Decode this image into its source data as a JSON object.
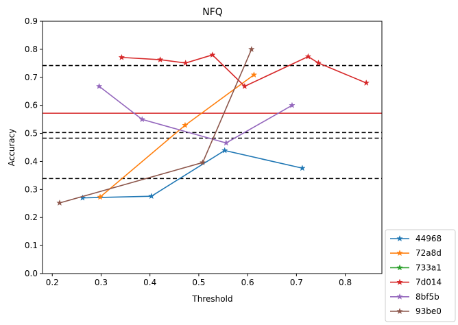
{
  "chart_data": {
    "type": "line",
    "title": "NFQ",
    "xlabel": "Threshold",
    "ylabel": "Accuracy",
    "xlim": [
      0.18,
      0.875
    ],
    "ylim": [
      0.0,
      0.9
    ],
    "xticks": [
      0.2,
      0.3,
      0.4,
      0.5,
      0.6,
      0.7,
      0.8
    ],
    "xtick_labels": [
      "0.2",
      "0.3",
      "0.4",
      "0.5",
      "0.6",
      "0.7",
      "0.8"
    ],
    "yticks": [
      0.0,
      0.1,
      0.2,
      0.3,
      0.4,
      0.5,
      0.6,
      0.7,
      0.8,
      0.9
    ],
    "ytick_labels": [
      "0.0",
      "0.1",
      "0.2",
      "0.3",
      "0.4",
      "0.5",
      "0.6",
      "0.7",
      "0.8",
      "0.9"
    ],
    "grid": false,
    "legend_position": "outside-lower-right",
    "hlines": [
      {
        "y": 0.742,
        "style": "dashed",
        "color": "#000000"
      },
      {
        "y": 0.572,
        "style": "solid",
        "color": "#d62728"
      },
      {
        "y": 0.503,
        "style": "dashed",
        "color": "#000000"
      },
      {
        "y": 0.483,
        "style": "dashed",
        "color": "#000000"
      },
      {
        "y": 0.339,
        "style": "dashed",
        "color": "#000000"
      }
    ],
    "series": [
      {
        "name": "44968",
        "color": "#1f77b4",
        "marker": "star",
        "x": [
          0.262,
          0.403,
          0.553,
          0.712
        ],
        "y": [
          0.27,
          0.276,
          0.439,
          0.376
        ]
      },
      {
        "name": "72a8d",
        "color": "#ff7f0e",
        "marker": "star",
        "x": [
          0.298,
          0.472,
          0.613
        ],
        "y": [
          0.273,
          0.529,
          0.709
        ]
      },
      {
        "name": "733a1",
        "color": "#2ca02c",
        "marker": "star",
        "x": [],
        "y": []
      },
      {
        "name": "7d014",
        "color": "#d62728",
        "marker": "star",
        "x": [
          0.342,
          0.421,
          0.473,
          0.528,
          0.594,
          0.724,
          0.745,
          0.843
        ],
        "y": [
          0.771,
          0.763,
          0.751,
          0.78,
          0.668,
          0.774,
          0.751,
          0.68
        ]
      },
      {
        "name": "8bf5b",
        "color": "#9467bd",
        "marker": "star",
        "x": [
          0.296,
          0.384,
          0.556,
          0.691
        ],
        "y": [
          0.668,
          0.55,
          0.466,
          0.6
        ]
      },
      {
        "name": "93be0",
        "color": "#8c564b",
        "marker": "star",
        "x": [
          0.215,
          0.508,
          0.608
        ],
        "y": [
          0.252,
          0.396,
          0.8
        ]
      }
    ]
  }
}
